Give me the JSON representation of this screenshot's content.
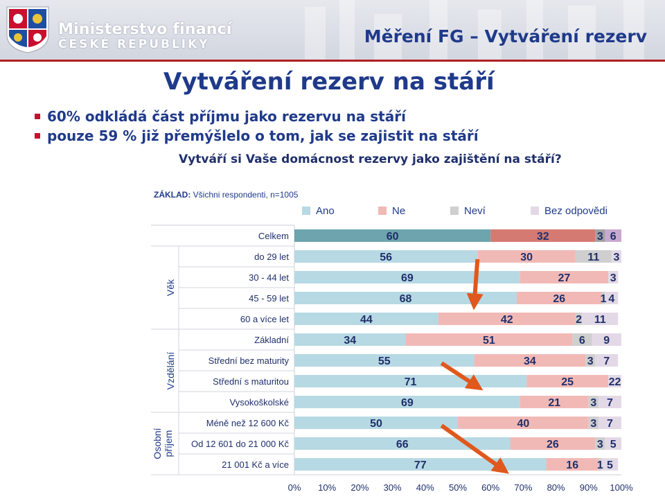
{
  "header": {
    "ministry_name": "Ministerstvo financí",
    "ministry_sub": "ČESKÉ REPUBLIKY",
    "slide_title": "Měření FG – Vytváření rezerv"
  },
  "page_title": "Vytváření rezerv na stáří",
  "bullets": [
    "60% odkládá část příjmu jako rezervu na stáří",
    "pouze 59 % již přemýšlelo o tom, jak se zajistit na stáří"
  ],
  "question": "Vytváří si Vaše domácnost rezervy jako zajištění na stáří?",
  "basis": {
    "label": "ZÁKLAD:",
    "text": "Všichni respondenti, n=1005"
  },
  "colors": {
    "accent": "#1f3a8a",
    "header_rule": "#b01f24",
    "arrow": "#e0581d"
  },
  "chart_data": {
    "type": "bar",
    "orientation": "horizontal",
    "stacked": true,
    "xlim": [
      0,
      100
    ],
    "x_ticks": [
      "0%",
      "10%",
      "20%",
      "30%",
      "40%",
      "50%",
      "60%",
      "70%",
      "80%",
      "90%",
      "100%"
    ],
    "series": [
      {
        "name": "Ano",
        "color": "#b7d9e3",
        "highlight_color": "#6da4ae"
      },
      {
        "name": "Ne",
        "color": "#f1b9b6",
        "highlight_color": "#d47a72"
      },
      {
        "name": "Neví",
        "color": "#cfcfcf",
        "highlight_color": "#a0a0a0"
      },
      {
        "name": "Bez odpovědi",
        "color": "#e3d9e6",
        "highlight_color": "#c9a9cf"
      }
    ],
    "groups": [
      {
        "label": "",
        "rows": [
          0
        ]
      },
      {
        "label": "Věk",
        "rows": [
          1,
          2,
          3,
          4
        ]
      },
      {
        "label": "Vzdělání",
        "rows": [
          5,
          6,
          7,
          8
        ]
      },
      {
        "label": "Osobní příjem",
        "rows": [
          9,
          10,
          11
        ]
      }
    ],
    "rows": [
      {
        "label": "Celkem",
        "values": [
          60,
          32,
          3,
          6
        ],
        "highlight": true
      },
      {
        "label": "do 29 let",
        "values": [
          56,
          30,
          11,
          3
        ]
      },
      {
        "label": "30 - 44 let",
        "values": [
          69,
          27,
          null,
          3
        ]
      },
      {
        "label": "45 - 59 let",
        "values": [
          68,
          26,
          1,
          4
        ]
      },
      {
        "label": "60 a více let",
        "values": [
          44,
          42,
          2,
          11
        ]
      },
      {
        "label": "Základní",
        "values": [
          34,
          51,
          6,
          9
        ]
      },
      {
        "label": "Střední bez maturity",
        "values": [
          55,
          34,
          3,
          7
        ]
      },
      {
        "label": "Střední s maturitou",
        "values": [
          71,
          25,
          null,
          22
        ]
      },
      {
        "label": "Vysokoškolské",
        "values": [
          69,
          21,
          3,
          7
        ]
      },
      {
        "label": "Méně než 12 600 Kč",
        "values": [
          50,
          40,
          3,
          7
        ]
      },
      {
        "label": "Od 12 601 do 21 000 Kč",
        "values": [
          66,
          26,
          3,
          5
        ]
      },
      {
        "label": "21 001 Kč a více",
        "values": [
          77,
          16,
          1,
          5
        ]
      }
    ],
    "trend_arrows": [
      {
        "from_row": 1,
        "to_row": 3,
        "from_value": 56,
        "to_value": 55
      },
      {
        "from_row": 6,
        "to_row": 7,
        "from_value": 45,
        "to_value": 56
      },
      {
        "from_row": 9,
        "to_row": 11,
        "from_value": 45,
        "to_value": 64
      }
    ]
  }
}
